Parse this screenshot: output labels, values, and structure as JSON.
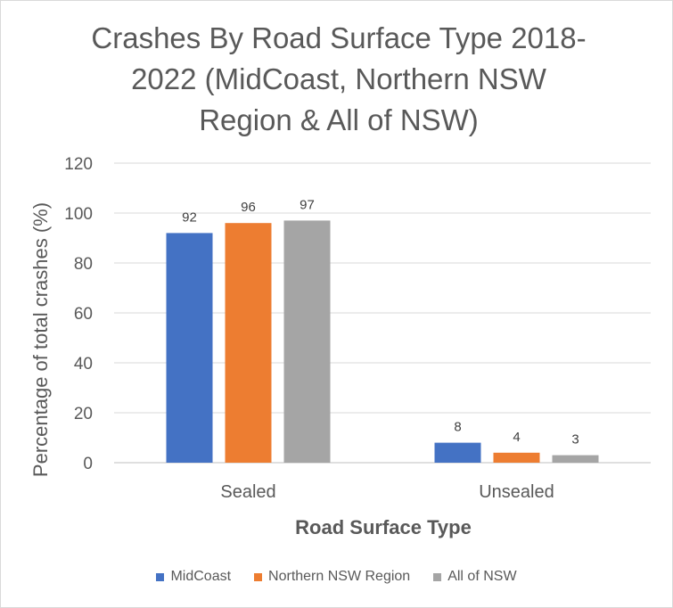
{
  "chart_data": {
    "type": "bar",
    "title": "Crashes By Road Surface Type 2018-2022 (MidCoast, Northern NSW Region & All of NSW)",
    "title_lines": [
      "Crashes By Road Surface Type 2018-",
      "2022 (MidCoast, Northern NSW",
      "Region & All of NSW)"
    ],
    "categories": [
      "Sealed",
      "Unsealed"
    ],
    "series": [
      {
        "name": "MidCoast",
        "values": [
          92,
          8
        ],
        "color": "#4472c4"
      },
      {
        "name": "Northern NSW Region",
        "values": [
          96,
          4
        ],
        "color": "#ed7d31"
      },
      {
        "name": "All of NSW",
        "values": [
          97,
          3
        ],
        "color": "#a5a5a5"
      }
    ],
    "xlabel": "Road Surface Type",
    "ylabel": "Percentage of total crashes (%)",
    "ylim": [
      0,
      120
    ],
    "yticks": [
      0,
      20,
      40,
      60,
      80,
      100,
      120
    ],
    "grid": true,
    "legend_position": "bottom"
  }
}
